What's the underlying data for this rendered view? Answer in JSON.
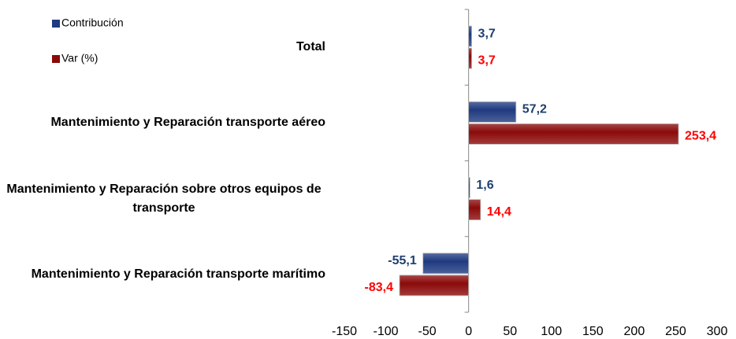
{
  "chart_data": {
    "type": "hbar",
    "categories": [
      "Total",
      "Mantenimiento y Reparación transporte aéreo",
      "Mantenimiento y Reparación sobre otros equipos de transporte",
      "Mantenimiento y Reparación transporte marítimo"
    ],
    "series": [
      {
        "name": "Contribución",
        "color": "#1f3a80",
        "label_color": "#1f3f6e",
        "values": [
          3.7,
          57.2,
          1.6,
          -55.1
        ],
        "value_labels": [
          "3,7",
          "57,2",
          "1,6",
          "-55,1"
        ]
      },
      {
        "name": "Var (%)",
        "color": "#8b0a0a",
        "label_color": "#ff0000",
        "values": [
          3.7,
          253.4,
          14.4,
          -83.4
        ],
        "value_labels": [
          "3,7",
          "253,4",
          "14,4",
          "-83,4"
        ]
      }
    ],
    "xlim": [
      -150,
      300
    ],
    "xticks": [
      -150,
      -100,
      -50,
      0,
      50,
      100,
      150,
      200,
      250,
      300
    ]
  }
}
